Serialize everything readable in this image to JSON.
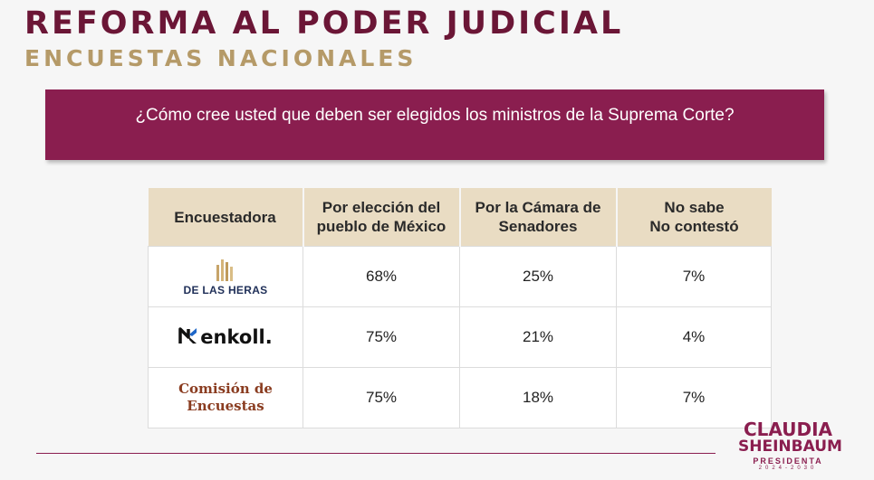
{
  "header": {
    "title": "REFORMA AL PODER JUDICIAL",
    "subtitle": "ENCUESTAS NACIONALES"
  },
  "question": "¿Cómo cree usted que deben ser elegidos los ministros de la Suprema Corte?",
  "table": {
    "headers": {
      "pollster": "Encuestadora",
      "popular_line1": "Por elección del",
      "popular_line2": "pueblo de México",
      "senate_line1": "Por la Cámara de",
      "senate_line2": "Senadores",
      "noanswer_line1": "No sabe",
      "noanswer_line2": "No contestó"
    },
    "rows": [
      {
        "logo_text": "DE LAS HERAS",
        "logo_icon": "de-las-heras-logo",
        "popular": "68%",
        "senate": "25%",
        "noanswer": "7%"
      },
      {
        "logo_text": "enkoll.",
        "logo_icon": "enkoll-logo",
        "popular": "75%",
        "senate": "21%",
        "noanswer": "4%"
      },
      {
        "logo_text_line1": "Comisión de",
        "logo_text_line2": "Encuestas",
        "popular": "75%",
        "senate": "18%",
        "noanswer": "7%"
      }
    ]
  },
  "brand": {
    "line1": "CLAUDIA",
    "line2": "SHEINBAUM",
    "role": "PRESIDENTA",
    "years": "2024-2030"
  },
  "colors": {
    "accent": "#8a1e4f",
    "title": "#6b1636",
    "subtitle": "#b59a68",
    "table_header": "#e9dcc3"
  }
}
